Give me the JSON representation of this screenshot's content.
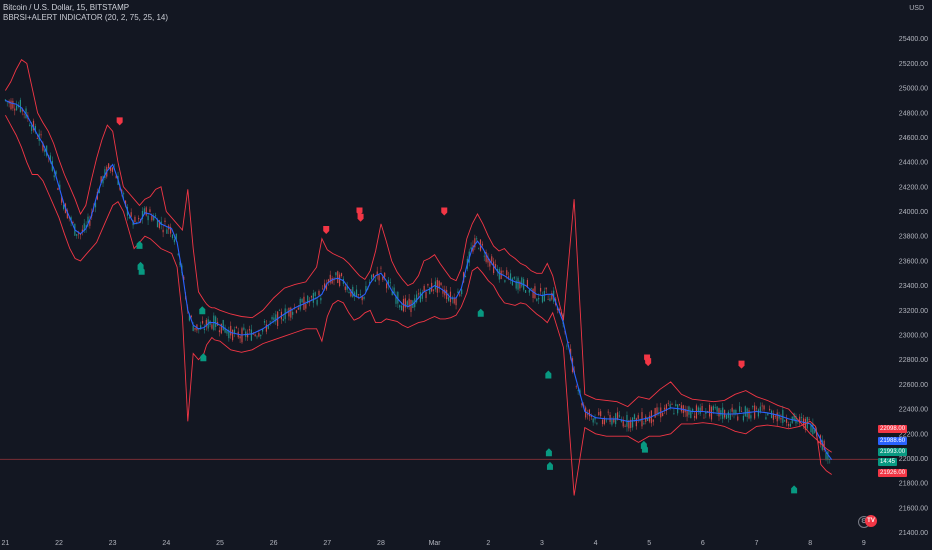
{
  "legend": {
    "symbol_line": "Bitcoin / U.S. Dollar, 15, BITSTAMP",
    "indicator_line": "BBRSI+ALERT INDICATOR (20, 2, 75, 25, 14)"
  },
  "currency": "USD",
  "colors": {
    "background": "#131722",
    "band": "#f23645",
    "basis": "#2962ff",
    "candle_up": "#26a69a",
    "candle_down": "#ef5350",
    "sell_marker": "#f23645",
    "buy_marker": "#089981",
    "hline": "#7a2d35"
  },
  "price_tags": [
    {
      "text": "22098.00",
      "color": "#f23645"
    },
    {
      "text": "21988.60",
      "color": "#2962ff"
    },
    {
      "text": "21993.00",
      "color": "#089981"
    },
    {
      "text": "14:45",
      "color": "#089981"
    },
    {
      "text": "21926.00",
      "color": "#f23645"
    }
  ],
  "logo_text": "TV",
  "chart_data": {
    "type": "line",
    "title": "Bitcoin / U.S. Dollar, 15, BITSTAMP",
    "indicator": "BBRSI+ALERT INDICATOR (20, 2, 75, 25, 14)",
    "y_axis": {
      "unit": "USD",
      "ticks": [
        21400,
        21600,
        21800,
        22000,
        22200,
        22400,
        22600,
        22800,
        23000,
        23200,
        23400,
        23600,
        23800,
        24000,
        24200,
        24400,
        24600,
        24800,
        25000,
        25200,
        25400
      ],
      "tick_labels": [
        "21400.00",
        "21600.00",
        "21800.00",
        "22000.00",
        "22200.00",
        "22400.00",
        "22600.00",
        "22800.00",
        "23000.00",
        "23200.00",
        "23400.00",
        "23600.00",
        "23800.00",
        "24000.00",
        "24200.00",
        "24400.00",
        "24600.00",
        "24800.00",
        "25000.00",
        "25200.00",
        "25400.00"
      ],
      "ylim": [
        21380,
        25600
      ]
    },
    "x_axis": {
      "tick_labels": [
        "21",
        "22",
        "23",
        "24",
        "25",
        "26",
        "27",
        "28",
        "Mar",
        "2",
        "3",
        "4",
        "5",
        "6",
        "7",
        "8",
        "9"
      ],
      "tick_positions": [
        0,
        1,
        2,
        3,
        4,
        5,
        6,
        7,
        8,
        9,
        10,
        11,
        12,
        13,
        14,
        15,
        16
      ],
      "xlim": [
        -0.1,
        16.45
      ]
    },
    "horizontal_line": 21993,
    "series": [
      {
        "name": "",
        "role": "basis",
        "x": [
          0,
          0.1,
          0.2,
          0.3,
          0.4,
          0.5,
          0.6,
          0.7,
          0.8,
          0.9,
          1.0,
          1.1,
          1.2,
          1.3,
          1.4,
          1.5,
          1.6,
          1.7,
          1.8,
          1.9,
          2.0,
          2.1,
          2.2,
          2.3,
          2.4,
          2.5,
          2.6,
          2.7,
          2.8,
          2.9,
          3.0,
          3.1,
          3.2,
          3.3,
          3.4,
          3.5,
          3.6,
          3.7,
          3.75,
          3.8,
          3.85,
          3.9,
          4.0,
          4.2,
          4.4,
          4.6,
          4.8,
          5.0,
          5.2,
          5.4,
          5.6,
          5.8,
          5.9,
          6.0,
          6.1,
          6.2,
          6.3,
          6.4,
          6.5,
          6.6,
          6.7,
          6.8,
          6.9,
          7.0,
          7.1,
          7.2,
          7.3,
          7.4,
          7.5,
          7.6,
          7.7,
          7.8,
          7.9,
          8.0,
          8.1,
          8.2,
          8.3,
          8.4,
          8.5,
          8.6,
          8.7,
          8.8,
          8.9,
          9.0,
          9.1,
          9.2,
          9.3,
          9.4,
          9.5,
          9.6,
          9.7,
          9.8,
          9.9,
          10.0,
          10.1,
          10.2,
          10.4,
          10.6,
          10.8,
          11.0,
          11.2,
          11.4,
          11.6,
          11.8,
          12.0,
          12.2,
          12.4,
          12.6,
          12.8,
          13.0,
          13.2,
          13.4,
          13.6,
          13.8,
          14.0,
          14.2,
          14.4,
          14.6,
          14.8,
          15.0,
          15.1,
          15.2,
          15.3,
          15.4
        ],
        "values": [
          24900,
          24880,
          24870,
          24840,
          24780,
          24700,
          24620,
          24550,
          24450,
          24350,
          24200,
          24050,
          23950,
          23850,
          23820,
          23860,
          23960,
          24120,
          24250,
          24330,
          24380,
          24260,
          24100,
          23980,
          23900,
          23910,
          23990,
          23980,
          23950,
          23900,
          23880,
          23860,
          23750,
          23500,
          23200,
          23080,
          23050,
          23060,
          23080,
          23100,
          23100,
          23100,
          23080,
          23020,
          23000,
          23010,
          23050,
          23110,
          23170,
          23220,
          23260,
          23300,
          23330,
          23420,
          23450,
          23460,
          23440,
          23380,
          23320,
          23300,
          23330,
          23420,
          23480,
          23500,
          23440,
          23360,
          23300,
          23250,
          23230,
          23250,
          23300,
          23350,
          23370,
          23400,
          23380,
          23350,
          23300,
          23300,
          23380,
          23560,
          23700,
          23760,
          23700,
          23620,
          23560,
          23500,
          23480,
          23450,
          23430,
          23420,
          23400,
          23360,
          23330,
          23320,
          23330,
          23330,
          23100,
          22700,
          22380,
          22330,
          22320,
          22320,
          22300,
          22310,
          22330,
          22370,
          22410,
          22400,
          22380,
          22380,
          22370,
          22360,
          22360,
          22370,
          22380,
          22370,
          22350,
          22320,
          22300,
          22280,
          22230,
          22150,
          22050,
          21990
        ]
      },
      {
        "name": "",
        "role": "upper-band",
        "x": [
          0,
          0.1,
          0.2,
          0.3,
          0.4,
          0.5,
          0.6,
          0.7,
          0.8,
          0.9,
          1.0,
          1.1,
          1.2,
          1.3,
          1.4,
          1.5,
          1.6,
          1.7,
          1.8,
          1.9,
          2.0,
          2.1,
          2.2,
          2.3,
          2.4,
          2.5,
          2.6,
          2.7,
          2.8,
          2.9,
          3.0,
          3.1,
          3.2,
          3.3,
          3.4,
          3.5,
          3.6,
          3.7,
          3.75,
          3.8,
          3.85,
          3.9,
          4.0,
          4.2,
          4.4,
          4.6,
          4.8,
          5.0,
          5.2,
          5.4,
          5.6,
          5.8,
          5.9,
          6.0,
          6.1,
          6.2,
          6.3,
          6.4,
          6.5,
          6.6,
          6.7,
          6.8,
          6.9,
          7.0,
          7.1,
          7.2,
          7.3,
          7.4,
          7.5,
          7.6,
          7.7,
          7.8,
          7.9,
          8.0,
          8.1,
          8.2,
          8.3,
          8.4,
          8.5,
          8.6,
          8.7,
          8.8,
          8.9,
          9.0,
          9.1,
          9.2,
          9.3,
          9.4,
          9.5,
          9.6,
          9.7,
          9.8,
          9.9,
          10.0,
          10.1,
          10.2,
          10.4,
          10.6,
          10.8,
          11.0,
          11.2,
          11.4,
          11.6,
          11.8,
          12.0,
          12.2,
          12.4,
          12.6,
          12.8,
          13.0,
          13.2,
          13.4,
          13.6,
          13.8,
          14.0,
          14.2,
          14.4,
          14.6,
          14.8,
          15.0,
          15.1,
          15.2,
          15.3,
          15.4
        ],
        "values": [
          24980,
          25050,
          25150,
          25230,
          25200,
          25000,
          24800,
          24720,
          24650,
          24550,
          24420,
          24300,
          24200,
          24100,
          23980,
          24050,
          24250,
          24430,
          24580,
          24700,
          24650,
          24400,
          24200,
          24150,
          24100,
          24050,
          24100,
          24120,
          24180,
          24200,
          24000,
          23950,
          23900,
          23850,
          24180,
          23700,
          23350,
          23280,
          23250,
          23230,
          23220,
          23220,
          23200,
          23170,
          23150,
          23140,
          23200,
          23300,
          23380,
          23410,
          23430,
          23550,
          23780,
          23690,
          23660,
          23640,
          23620,
          23580,
          23530,
          23480,
          23450,
          23520,
          23680,
          23900,
          23760,
          23600,
          23510,
          23450,
          23400,
          23420,
          23480,
          23600,
          23620,
          23650,
          23580,
          23520,
          23460,
          23440,
          23540,
          23780,
          23900,
          23980,
          23900,
          23800,
          23720,
          23680,
          23700,
          23650,
          23620,
          23580,
          23560,
          23520,
          23500,
          23500,
          23580,
          23480,
          23120,
          24100,
          22520,
          22480,
          22470,
          22460,
          22420,
          22500,
          22480,
          22560,
          22620,
          22520,
          22480,
          22470,
          22460,
          22470,
          22520,
          22550,
          22500,
          22470,
          22430,
          22400,
          22300,
          22200,
          22160,
          22120,
          22080,
          22050
        ]
      },
      {
        "name": "",
        "role": "lower-band",
        "x": [
          0,
          0.1,
          0.2,
          0.3,
          0.4,
          0.5,
          0.6,
          0.7,
          0.8,
          0.9,
          1.0,
          1.1,
          1.2,
          1.3,
          1.4,
          1.5,
          1.6,
          1.7,
          1.8,
          1.9,
          2.0,
          2.1,
          2.2,
          2.3,
          2.4,
          2.5,
          2.6,
          2.7,
          2.8,
          2.9,
          3.0,
          3.1,
          3.2,
          3.3,
          3.4,
          3.5,
          3.6,
          3.7,
          3.75,
          3.8,
          3.85,
          3.9,
          4.0,
          4.2,
          4.4,
          4.6,
          4.8,
          5.0,
          5.2,
          5.4,
          5.6,
          5.8,
          5.9,
          6.0,
          6.1,
          6.2,
          6.3,
          6.4,
          6.5,
          6.6,
          6.7,
          6.8,
          6.9,
          7.0,
          7.1,
          7.2,
          7.3,
          7.4,
          7.5,
          7.6,
          7.7,
          7.8,
          7.9,
          8.0,
          8.1,
          8.2,
          8.3,
          8.4,
          8.5,
          8.6,
          8.7,
          8.8,
          8.9,
          9.0,
          9.1,
          9.2,
          9.3,
          9.4,
          9.5,
          9.6,
          9.7,
          9.8,
          9.9,
          10.0,
          10.1,
          10.2,
          10.4,
          10.6,
          10.8,
          11.0,
          11.2,
          11.4,
          11.6,
          11.8,
          12.0,
          12.2,
          12.4,
          12.6,
          12.8,
          13.0,
          13.2,
          13.4,
          13.6,
          13.8,
          14.0,
          14.2,
          14.4,
          14.6,
          14.8,
          15.0,
          15.1,
          15.2,
          15.3,
          15.4
        ],
        "values": [
          24780,
          24700,
          24620,
          24520,
          24400,
          24300,
          24300,
          24250,
          24150,
          24050,
          23950,
          23820,
          23700,
          23620,
          23600,
          23650,
          23700,
          23750,
          23850,
          23950,
          24050,
          24080,
          24000,
          23850,
          23700,
          23750,
          23800,
          23780,
          23740,
          23700,
          23680,
          23660,
          23550,
          23150,
          22300,
          22850,
          22800,
          22850,
          22920,
          22950,
          22980,
          22960,
          22950,
          22880,
          22860,
          22880,
          22930,
          22960,
          22990,
          23020,
          23050,
          23050,
          22950,
          23150,
          23250,
          23280,
          23260,
          23180,
          23120,
          23140,
          23180,
          23200,
          23100,
          23100,
          23130,
          23120,
          23110,
          23080,
          23060,
          23080,
          23100,
          23110,
          23130,
          23150,
          23130,
          23130,
          23140,
          23160,
          23230,
          23340,
          23520,
          23550,
          23500,
          23440,
          23400,
          23320,
          23260,
          23250,
          23240,
          23260,
          23250,
          23210,
          23170,
          23140,
          23100,
          23180,
          22900,
          21700,
          22250,
          22200,
          22180,
          22180,
          22180,
          22130,
          22180,
          22180,
          22200,
          22280,
          22280,
          22290,
          22280,
          22260,
          22220,
          22200,
          22260,
          22270,
          22260,
          22240,
          22260,
          22300,
          22260,
          21950,
          21900,
          21870
        ]
      }
    ],
    "markers": [
      {
        "type": "sell",
        "x": 2.13,
        "y": 24730
      },
      {
        "type": "sell",
        "x": 5.98,
        "y": 23850
      },
      {
        "type": "sell",
        "x": 6.6,
        "y": 24000
      },
      {
        "type": "sell",
        "x": 6.62,
        "y": 23950
      },
      {
        "type": "sell",
        "x": 8.18,
        "y": 24000
      },
      {
        "type": "sell",
        "x": 11.96,
        "y": 22810
      },
      {
        "type": "sell",
        "x": 11.98,
        "y": 22780
      },
      {
        "type": "sell",
        "x": 13.72,
        "y": 22760
      },
      {
        "type": "buy",
        "x": 2.5,
        "y": 23730
      },
      {
        "type": "buy",
        "x": 2.52,
        "y": 23560
      },
      {
        "type": "buy",
        "x": 2.54,
        "y": 23520
      },
      {
        "type": "buy",
        "x": 3.67,
        "y": 23200
      },
      {
        "type": "buy",
        "x": 3.69,
        "y": 22820
      },
      {
        "type": "buy",
        "x": 8.86,
        "y": 23180
      },
      {
        "type": "buy",
        "x": 10.12,
        "y": 22680
      },
      {
        "type": "buy",
        "x": 10.13,
        "y": 22050
      },
      {
        "type": "buy",
        "x": 10.15,
        "y": 21940
      },
      {
        "type": "buy",
        "x": 11.9,
        "y": 22110
      },
      {
        "type": "buy",
        "x": 11.92,
        "y": 22080
      },
      {
        "type": "buy",
        "x": 14.7,
        "y": 21750
      }
    ]
  }
}
